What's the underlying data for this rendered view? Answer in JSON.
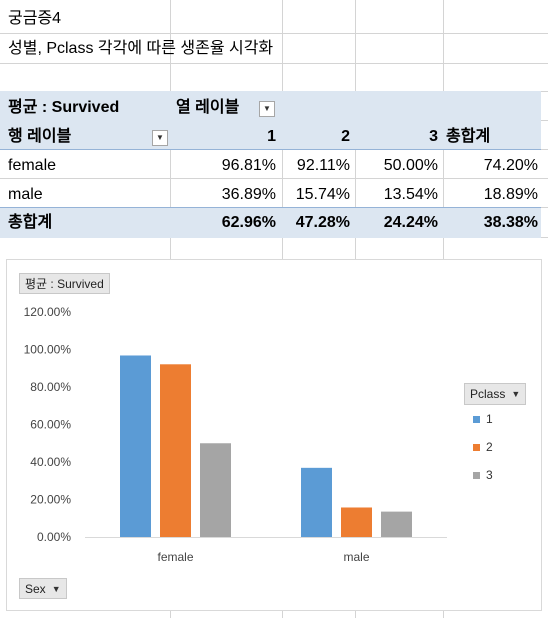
{
  "sheet": {
    "title": "궁금증4",
    "subtitle": "성별, Pclass 각각에 따른 생존율 시각화"
  },
  "pivot": {
    "value_label": "평균 : Survived",
    "column_labels": "열 레이블",
    "row_labels": "행 레이블",
    "col_headers": [
      "1",
      "2",
      "3"
    ],
    "grand_total_label": "총합계",
    "rows": [
      {
        "label": "female",
        "values": [
          "96.81%",
          "92.11%",
          "50.00%"
        ],
        "total": "74.20%"
      },
      {
        "label": "male",
        "values": [
          "36.89%",
          "15.74%",
          "13.54%"
        ],
        "total": "18.89%"
      }
    ],
    "grand_total": {
      "label": "총합계",
      "values": [
        "62.96%",
        "47.28%",
        "24.24%"
      ],
      "total": "38.38%"
    },
    "dropdown_icon": "dropdown-arrow-icon"
  },
  "chart": {
    "value_field_button": "평균 : Survived",
    "legend_field_button": "Pclass",
    "axis_field_button": "Sex",
    "colors": {
      "1": "#5b9bd5",
      "2": "#ed7d31",
      "3": "#a5a5a5"
    }
  },
  "chart_data": {
    "type": "bar",
    "categories": [
      "female",
      "male"
    ],
    "series": [
      {
        "name": "1",
        "values": [
          96.81,
          36.89
        ]
      },
      {
        "name": "2",
        "values": [
          92.11,
          15.74
        ]
      },
      {
        "name": "3",
        "values": [
          50.0,
          13.54
        ]
      }
    ],
    "ylim": [
      0,
      120
    ],
    "yticks": [
      "0.00%",
      "20.00%",
      "40.00%",
      "60.00%",
      "80.00%",
      "100.00%",
      "120.00%"
    ],
    "legend": "right",
    "grid": false
  }
}
